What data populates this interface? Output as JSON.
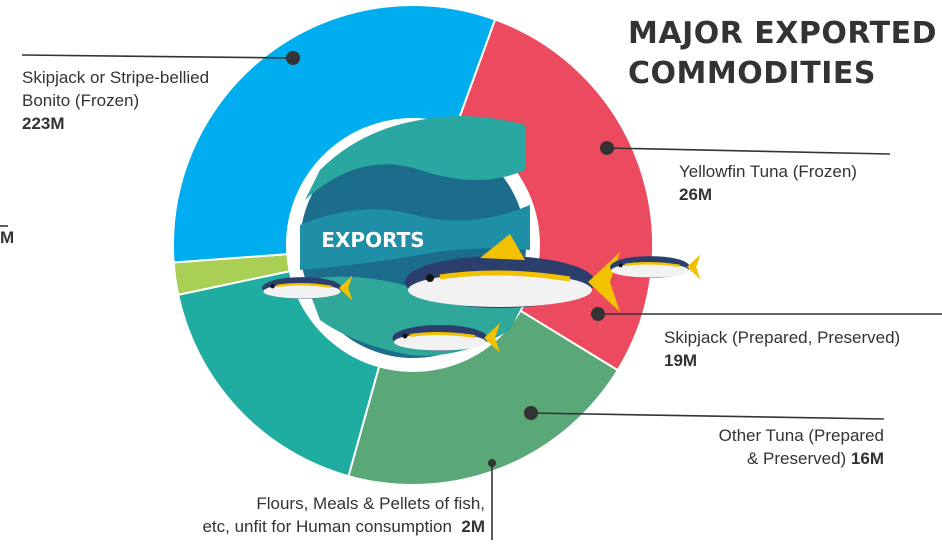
{
  "title": {
    "line1": "MAJOR EXPORTED",
    "line2": "COMMODITIES"
  },
  "center_label": "EXPORTS",
  "edge_fragment": "M",
  "colors": {
    "skipjack_frozen": "#00aeef",
    "yellowfin": "#ec4a5f",
    "skipjack_prepared": "#5aa777",
    "other_tuna": "#1fada2",
    "flours": "#a9cf54",
    "leader": "#333333"
  },
  "chart_data": {
    "type": "pie",
    "style": "donut",
    "legend": "none",
    "labels": [
      {
        "line1": "Skipjack or Stripe-bellied",
        "line2": "Bonito (Frozen)",
        "value_text": "223M"
      },
      {
        "line1": "Yellowfin Tuna (Frozen)",
        "value_text": "26M"
      },
      {
        "line1": "Skipjack (Prepared, Preserved)",
        "value_text": "19M"
      },
      {
        "line1": "Other Tuna (Prepared",
        "line2": "& Preserved)",
        "value_text": "16M"
      },
      {
        "line1": "Flours, Meals & Pellets of fish,",
        "line2": "etc, unfit for Human consumption",
        "value_text": "2M"
      }
    ],
    "values": [
      223,
      26,
      19,
      16,
      2
    ],
    "unit": "M"
  }
}
